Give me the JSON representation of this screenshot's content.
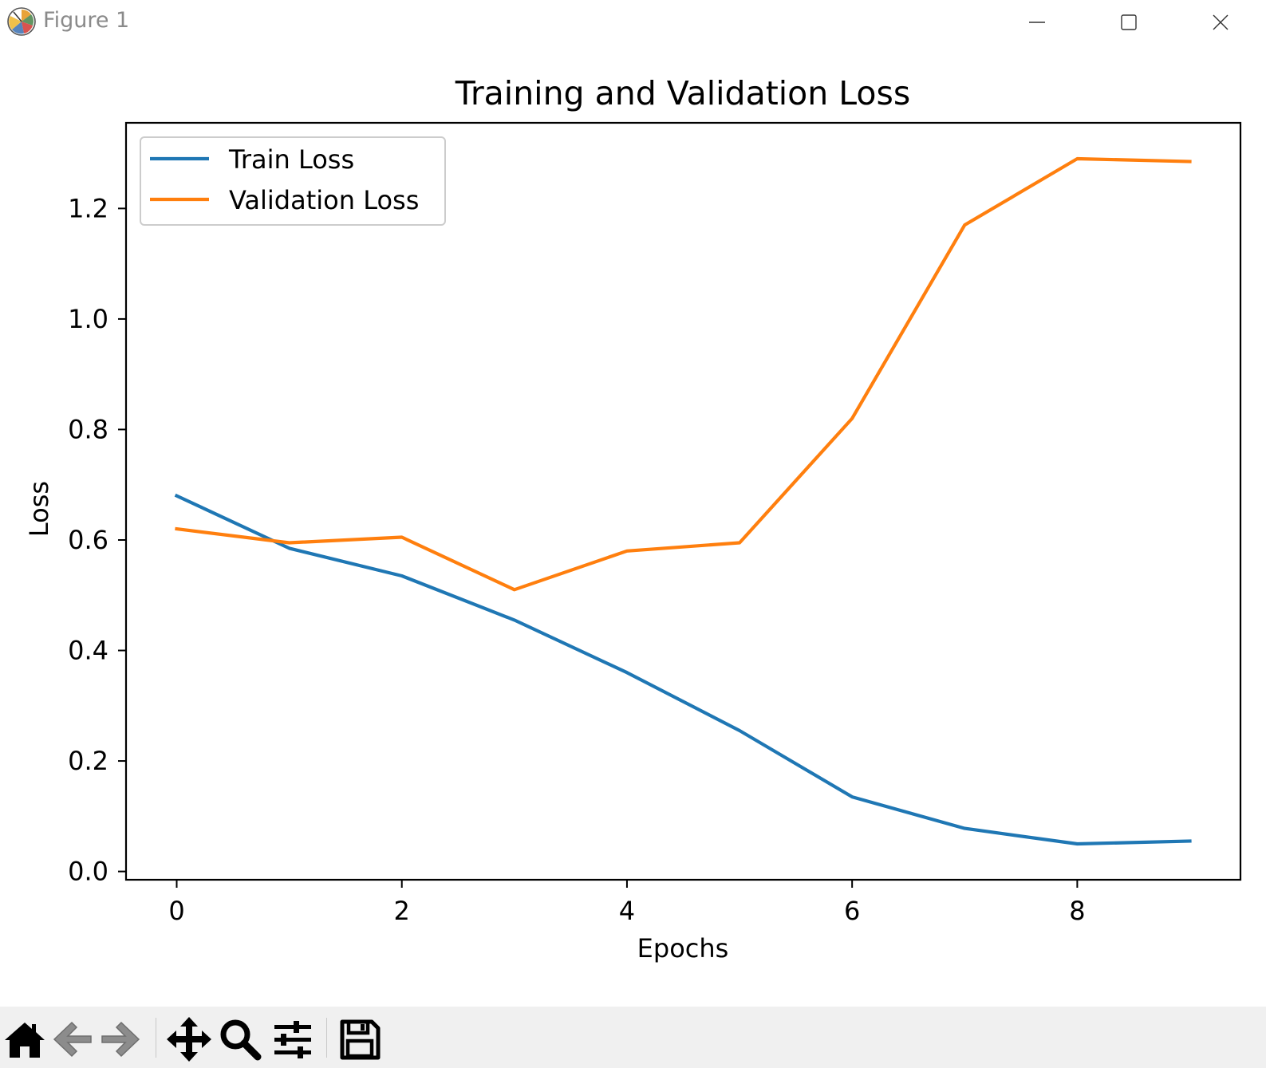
{
  "window": {
    "title": "Figure 1"
  },
  "toolbar": {
    "tools": [
      {
        "name": "home-button",
        "icon": "home-icon"
      },
      {
        "name": "back-button",
        "icon": "arrow-left-icon"
      },
      {
        "name": "forward-button",
        "icon": "arrow-right-icon"
      },
      {
        "name": "pan-button",
        "icon": "move-icon"
      },
      {
        "name": "zoom-button",
        "icon": "magnifier-icon"
      },
      {
        "name": "configure-subplots-button",
        "icon": "sliders-icon"
      },
      {
        "name": "save-button",
        "icon": "floppy-disk-icon"
      }
    ]
  },
  "chart_data": {
    "type": "line",
    "title": "Training and Validation Loss",
    "xlabel": "Epochs",
    "ylabel": "Loss",
    "x": [
      0,
      1,
      2,
      3,
      4,
      5,
      6,
      7,
      8,
      9
    ],
    "xlim": [
      -0.45,
      9.45
    ],
    "ylim": [
      -0.015,
      1.355
    ],
    "xticks": [
      0,
      2,
      4,
      6,
      8
    ],
    "xtick_labels": [
      "0",
      "2",
      "4",
      "6",
      "8"
    ],
    "yticks": [
      0.0,
      0.2,
      0.4,
      0.6,
      0.8,
      1.0,
      1.2
    ],
    "ytick_labels": [
      "0.0",
      "0.2",
      "0.4",
      "0.6",
      "0.8",
      "1.0",
      "1.2"
    ],
    "grid": false,
    "legend_position": "top-left",
    "series": [
      {
        "name": "Train Loss",
        "color": "#1f77b4",
        "values": [
          0.68,
          0.585,
          0.535,
          0.455,
          0.36,
          0.255,
          0.135,
          0.078,
          0.05,
          0.055
        ]
      },
      {
        "name": "Validation Loss",
        "color": "#ff7f0e",
        "values": [
          0.62,
          0.595,
          0.605,
          0.51,
          0.58,
          0.595,
          0.82,
          1.17,
          1.29,
          1.285
        ]
      }
    ]
  }
}
